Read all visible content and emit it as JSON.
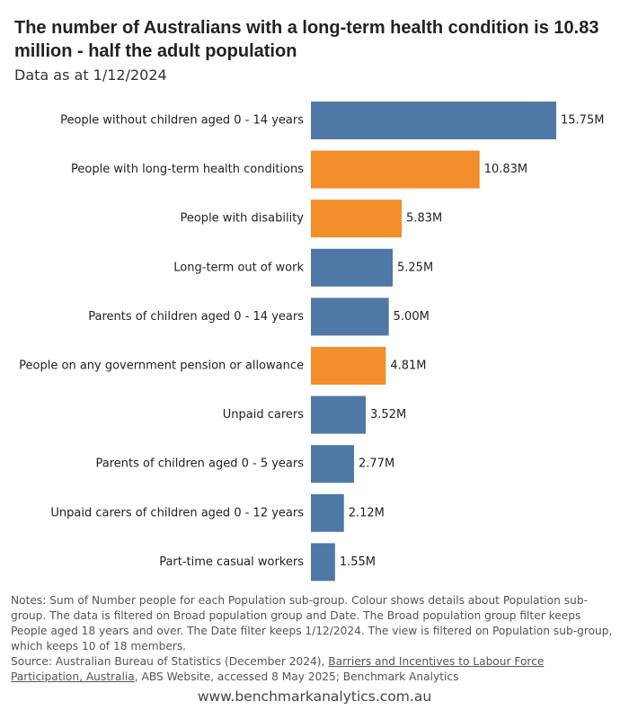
{
  "title": "The number of Australians with a long-term health condition is 10.83 million - half the adult population",
  "subtitle": "Data as at 1/12/2024",
  "colors": {
    "default": "#4e79a7",
    "highlight": "#f28e2b"
  },
  "chart_data": {
    "type": "bar",
    "orientation": "horizontal",
    "unit": "M",
    "categories": [
      "People without children aged 0 - 14 years",
      "People with long-term health conditions",
      "People with disability",
      "Long-term out of work",
      "Parents of children aged 0 - 14 years",
      "People on any government pension or allowance",
      "Unpaid carers",
      "Parents of children aged 0 - 5 years",
      "Unpaid carers of children aged 0 - 12 years",
      "Part-time casual workers"
    ],
    "values": [
      15.75,
      10.83,
      5.83,
      5.25,
      5.0,
      4.81,
      3.52,
      2.77,
      2.12,
      1.55
    ],
    "value_labels": [
      "15.75M",
      "10.83M",
      "5.83M",
      "5.25M",
      "5.00M",
      "4.81M",
      "3.52M",
      "2.77M",
      "2.12M",
      "1.55M"
    ],
    "highlighted": [
      false,
      true,
      true,
      false,
      false,
      true,
      false,
      false,
      false,
      false
    ],
    "xlim": [
      0,
      15.75
    ],
    "grid": false
  },
  "notes": "Notes: Sum of Number people for each Population sub-group.  Colour shows details about Population sub-group. The data is filtered on Broad population group and Date. The Broad population group filter keeps People aged 18 years and over. The Date filter keeps 1/12/2024. The view is filtered on Population sub-group, which keeps 10 of 18 members.",
  "source": {
    "prefix": "Source: Australian Bureau of Statistics (December 2024), ",
    "link_text": "Barriers and Incentives to Labour Force Participation, Australia",
    "suffix": ", ABS Website, accessed 8 May 2025; Benchmark Analytics"
  },
  "website": "www.benchmarkanalytics.com.au"
}
